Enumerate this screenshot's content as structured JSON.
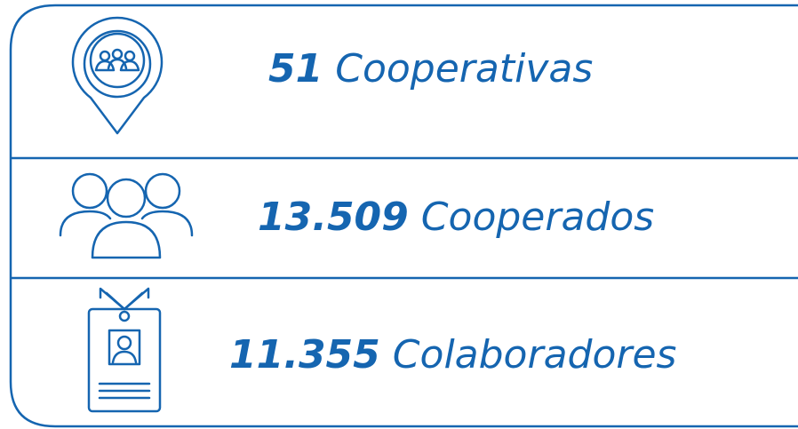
{
  "rows": [
    {
      "number": "51",
      "label": "Cooperativas"
    },
    {
      "number": "13.509",
      "label": "Cooperados"
    },
    {
      "number": "11.355",
      "label": "Colaboradores"
    }
  ]
}
